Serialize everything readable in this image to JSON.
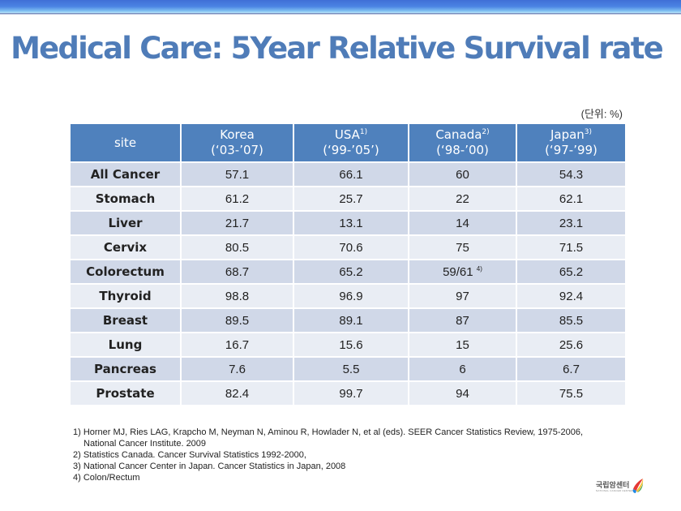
{
  "title": "Medical Care: 5Year Relative Survival rate",
  "unit_label": "(단위: %)",
  "table": {
    "headers": [
      {
        "name": "site",
        "period": "",
        "note": ""
      },
      {
        "name": "Korea",
        "period": "(‘03-’07)",
        "note": ""
      },
      {
        "name": "USA",
        "period": "(‘99-’05’)",
        "note": "1)"
      },
      {
        "name": "Canada",
        "period": "(‘98-’00)",
        "note": "2)"
      },
      {
        "name": "Japan",
        "period": "(‘97-’99)",
        "note": "3)"
      }
    ],
    "rows": [
      {
        "site": "All Cancer",
        "korea": "57.1",
        "usa": "66.1",
        "canada": "60",
        "canada_note": "",
        "japan": "54.3"
      },
      {
        "site": "Stomach",
        "korea": "61.2",
        "usa": "25.7",
        "canada": "22",
        "canada_note": "",
        "japan": "62.1"
      },
      {
        "site": "Liver",
        "korea": "21.7",
        "usa": "13.1",
        "canada": "14",
        "canada_note": "",
        "japan": "23.1"
      },
      {
        "site": "Cervix",
        "korea": "80.5",
        "usa": "70.6",
        "canada": "75",
        "canada_note": "",
        "japan": "71.5"
      },
      {
        "site": "Colorectum",
        "korea": "68.7",
        "usa": "65.2",
        "canada": "59/61",
        "canada_note": "4)",
        "japan": "65.2"
      },
      {
        "site": "Thyroid",
        "korea": "98.8",
        "usa": "96.9",
        "canada": "97",
        "canada_note": "",
        "japan": "92.4"
      },
      {
        "site": "Breast",
        "korea": "89.5",
        "usa": "89.1",
        "canada": "87",
        "canada_note": "",
        "japan": "85.5"
      },
      {
        "site": "Lung",
        "korea": "16.7",
        "usa": "15.6",
        "canada": "15",
        "canada_note": "",
        "japan": "25.6"
      },
      {
        "site": "Pancreas",
        "korea": "7.6",
        "usa": "5.5",
        "canada": "6",
        "canada_note": "",
        "japan": "6.7"
      },
      {
        "site": "Prostate",
        "korea": "82.4",
        "usa": "99.7",
        "canada": "94",
        "canada_note": "",
        "japan": "75.5"
      }
    ]
  },
  "footnotes": [
    "1) Horner MJ, Ries LAG, Krapcho M, Neyman N, Aminou R, Howlader N, et al (eds). SEER Cancer Statistics Review, 1975-2006,",
    "National Cancer Institute. 2009",
    "2) Statistics Canada. Cancer Survival Statistics 1992-2000,",
    "3) National Cancer Center in Japan. Cancer Statistics in Japan, 2008",
    "4) Colon/Rectum"
  ],
  "logo": {
    "korean": "국립암센터",
    "english": "NATIONAL CANCER CENTER"
  },
  "colors": {
    "title": "#4f7cb8",
    "header_bg": "#4f81bd",
    "row_odd": "#d0d8e8",
    "row_even": "#e9edf4"
  }
}
